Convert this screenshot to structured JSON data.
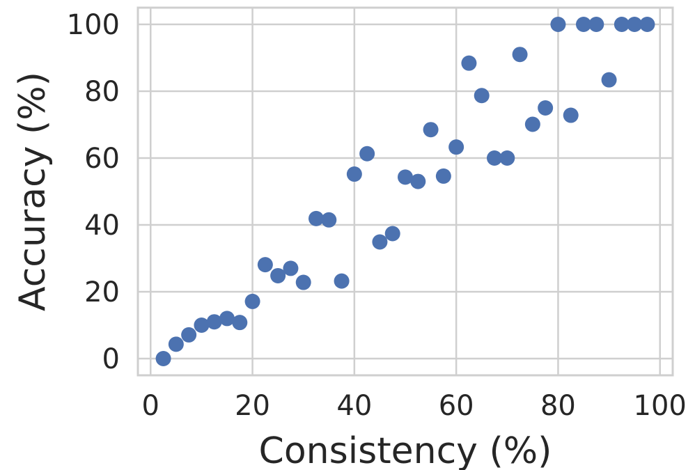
{
  "chart_data": {
    "type": "scatter",
    "title": "",
    "xlabel": "Consistency (%)",
    "ylabel": "Accuracy (%)",
    "xlim": [
      -2.5,
      102.5
    ],
    "ylim": [
      -5,
      105
    ],
    "xticks": [
      0,
      20,
      40,
      60,
      80,
      100
    ],
    "yticks": [
      0,
      20,
      40,
      60,
      80,
      100
    ],
    "grid": true,
    "point_color": "#4c72b0",
    "grid_color": "#cfcfcf",
    "text_color": "#262626",
    "series": [
      {
        "points": [
          [
            2.5,
            0
          ],
          [
            5,
            4.3
          ],
          [
            7.5,
            7.1
          ],
          [
            10,
            10
          ],
          [
            12.5,
            11
          ],
          [
            15,
            12
          ],
          [
            17.5,
            10.8
          ],
          [
            20,
            17.1
          ],
          [
            22.5,
            28.1
          ],
          [
            25,
            24.8
          ],
          [
            27.5,
            27
          ],
          [
            30,
            22.8
          ],
          [
            32.5,
            41.9
          ],
          [
            35,
            41.5
          ],
          [
            37.5,
            23.2
          ],
          [
            40,
            55.2
          ],
          [
            42.5,
            61.3
          ],
          [
            45,
            34.9
          ],
          [
            47.5,
            37.4
          ],
          [
            50,
            54.3
          ],
          [
            52.5,
            53
          ],
          [
            55,
            68.5
          ],
          [
            57.5,
            54.6
          ],
          [
            60,
            63.3
          ],
          [
            62.5,
            88.4
          ],
          [
            65,
            78.7
          ],
          [
            67.5,
            60
          ],
          [
            70,
            60
          ],
          [
            72.5,
            91
          ],
          [
            75,
            70.1
          ],
          [
            77.5,
            75
          ],
          [
            80,
            100
          ],
          [
            82.5,
            72.8
          ],
          [
            85,
            100
          ],
          [
            87.5,
            100
          ],
          [
            90,
            83.4
          ],
          [
            92.5,
            100
          ],
          [
            95,
            100
          ],
          [
            97.5,
            100
          ]
        ]
      }
    ]
  }
}
